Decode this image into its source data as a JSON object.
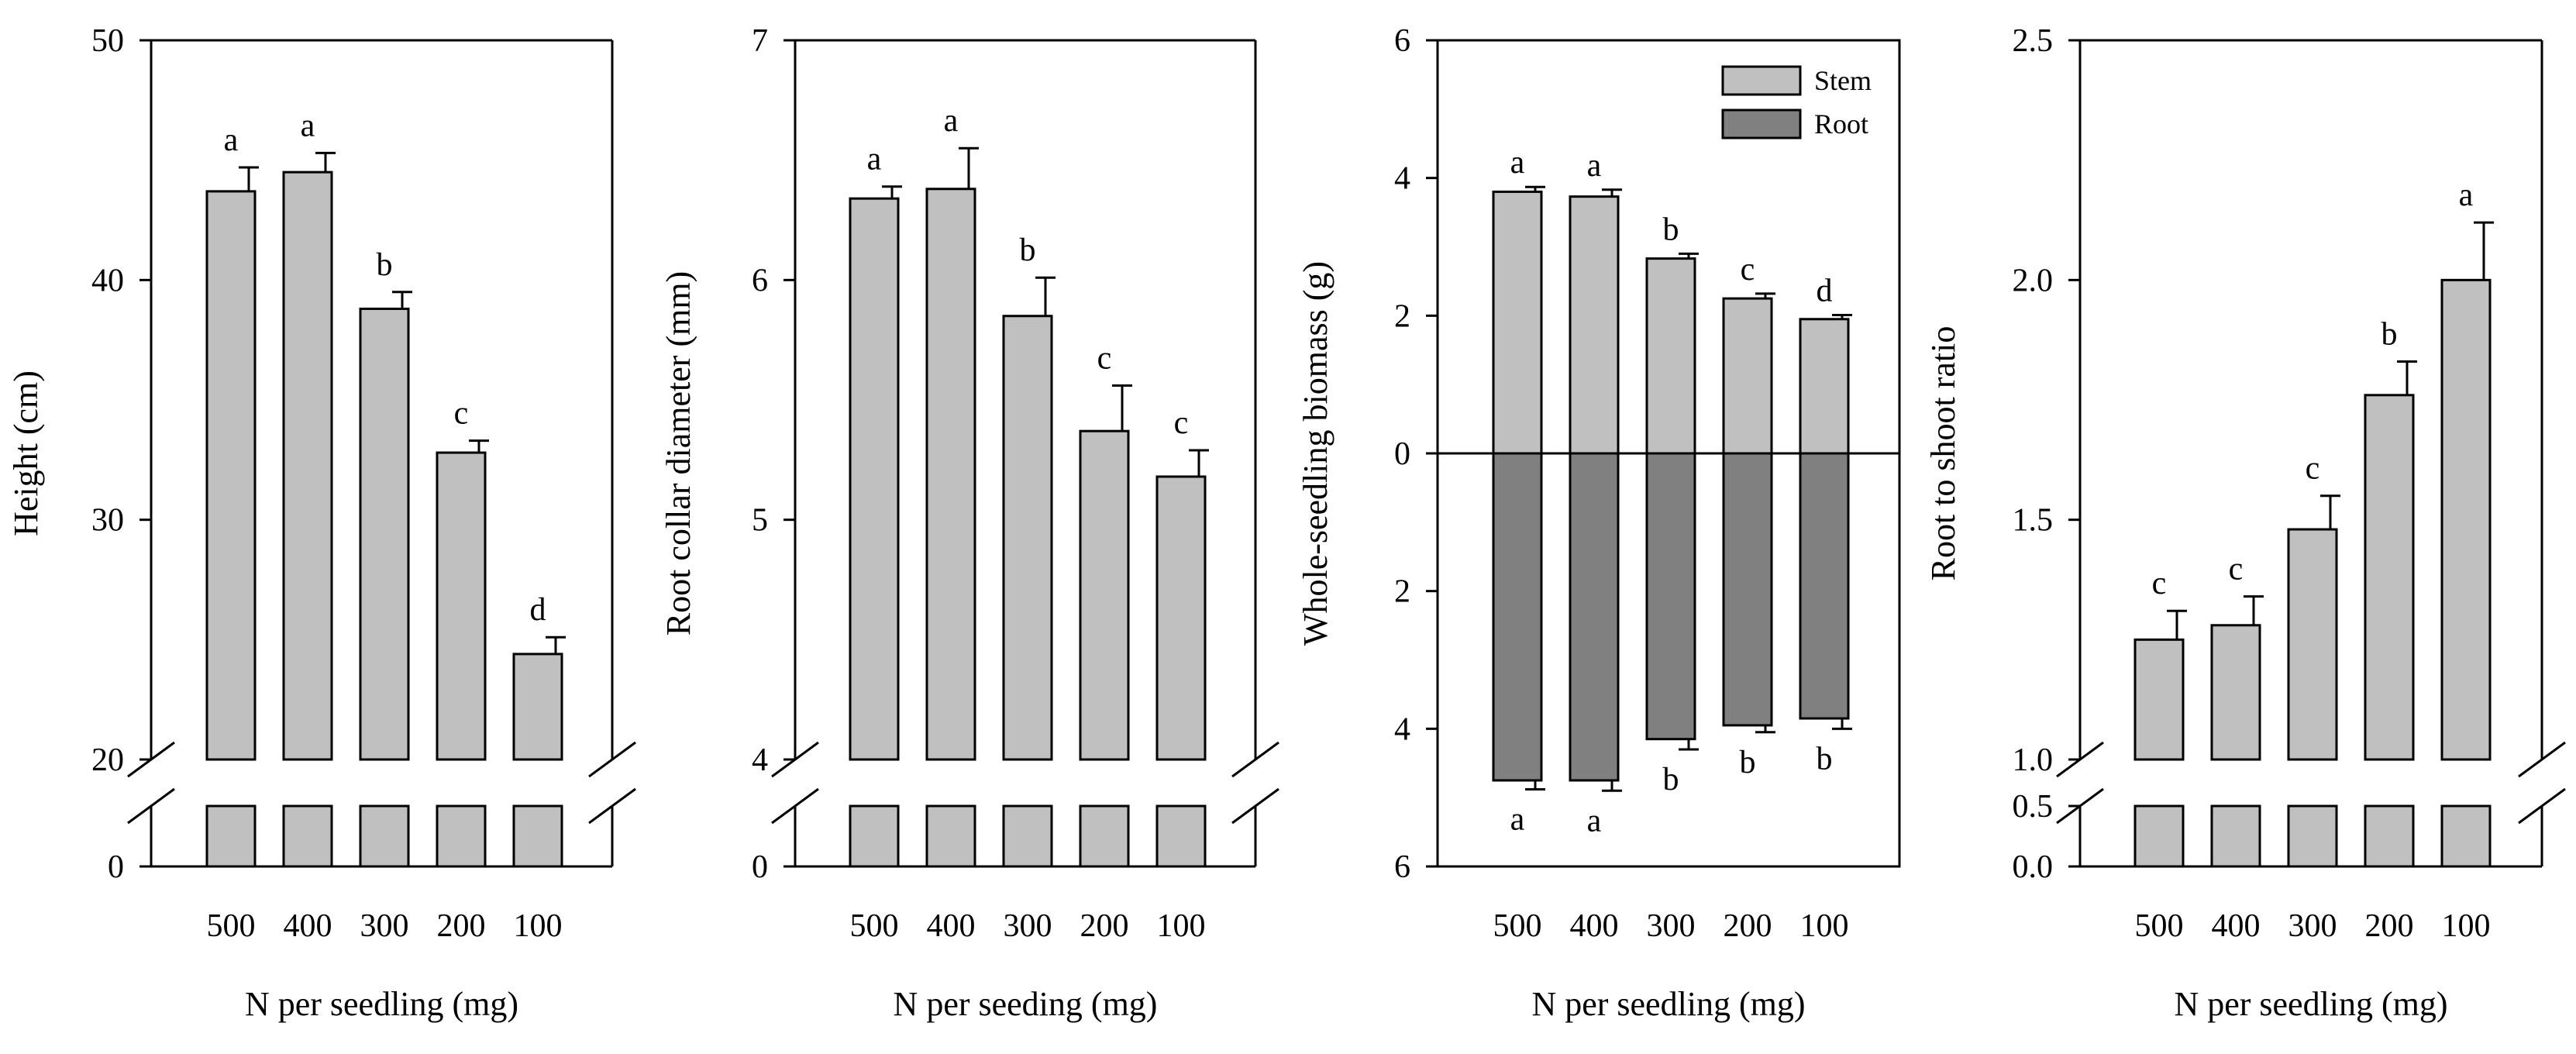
{
  "chart_data": [
    {
      "type": "bar",
      "title": "",
      "xlabel": "N per seedling (mg)",
      "ylabel": "Height (cm)",
      "categories": [
        "500",
        "400",
        "300",
        "200",
        "100"
      ],
      "values": [
        43.7,
        44.5,
        38.8,
        32.8,
        24.4
      ],
      "errors": [
        1.0,
        0.8,
        0.7,
        0.5,
        0.7
      ],
      "letters": [
        "a",
        "a",
        "b",
        "c",
        "d"
      ],
      "axis_break": true,
      "ylim_upper": [
        20,
        50
      ],
      "ylim_lower": [
        0,
        2
      ],
      "yticks_upper": [
        "20",
        "30",
        "40",
        "50"
      ],
      "yticks_lower": [
        "0"
      ],
      "color": "#c0c0c0"
    },
    {
      "type": "bar",
      "title": "",
      "xlabel": "N per seeding (mg)",
      "ylabel": "Root collar diameter (mm)",
      "categories": [
        "500",
        "400",
        "300",
        "200",
        "100"
      ],
      "values": [
        6.34,
        6.38,
        5.85,
        5.37,
        5.18
      ],
      "errors": [
        0.05,
        0.17,
        0.16,
        0.19,
        0.11
      ],
      "letters": [
        "a",
        "a",
        "b",
        "c",
        "c"
      ],
      "axis_break": true,
      "ylim_upper": [
        4,
        7
      ],
      "ylim_lower": [
        0,
        0.2
      ],
      "yticks_upper": [
        "4",
        "5",
        "6",
        "7"
      ],
      "yticks_lower": [
        "0"
      ],
      "color": "#c0c0c0"
    },
    {
      "type": "bar",
      "stacked": "diverging",
      "title": "",
      "xlabel": "N per seedling (mg)",
      "ylabel": "Whole-seedling biomass (g)",
      "categories": [
        "500",
        "400",
        "300",
        "200",
        "100"
      ],
      "ylim": [
        -6,
        6
      ],
      "yticks": [
        "6",
        "4",
        "2",
        "0",
        "2",
        "4",
        "6"
      ],
      "legend": {
        "position": "top-right",
        "entries": [
          "Stem",
          "Root"
        ]
      },
      "series": [
        {
          "name": "Stem",
          "color": "#c0c0c0",
          "values": [
            3.8,
            3.73,
            2.83,
            2.25,
            1.95
          ],
          "errors": [
            0.07,
            0.1,
            0.07,
            0.07,
            0.06
          ],
          "letters": [
            "a",
            "a",
            "b",
            "c",
            "d"
          ]
        },
        {
          "name": "Root",
          "color": "#808080",
          "values": [
            4.75,
            4.75,
            4.15,
            3.95,
            3.85
          ],
          "errors": [
            0.13,
            0.15,
            0.15,
            0.1,
            0.15
          ],
          "letters": [
            "a",
            "a",
            "b",
            "b",
            "b"
          ]
        }
      ]
    },
    {
      "type": "bar",
      "title": "",
      "xlabel": "N per seedling (mg)",
      "ylabel": "Root to shoot ratio",
      "categories": [
        "500",
        "400",
        "300",
        "200",
        "100"
      ],
      "values": [
        1.25,
        1.28,
        1.48,
        1.76,
        2.0
      ],
      "errors": [
        0.06,
        0.06,
        0.07,
        0.07,
        0.12
      ],
      "letters": [
        "c",
        "c",
        "c",
        "b",
        "a"
      ],
      "axis_break": true,
      "ylim_upper": [
        1.0,
        2.5
      ],
      "ylim_lower": [
        0.0,
        0.5
      ],
      "yticks_upper": [
        "1.0",
        "1.5",
        "2.0",
        "2.5"
      ],
      "yticks_lower": [
        "0.0",
        "0.5"
      ],
      "color": "#c0c0c0"
    }
  ]
}
